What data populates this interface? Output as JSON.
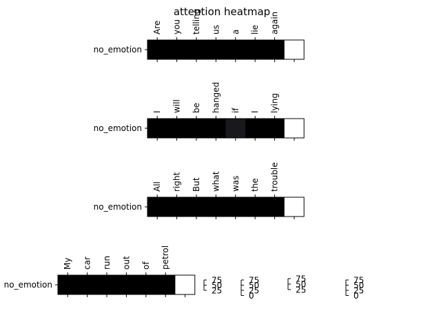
{
  "title": "attention heatmap",
  "colors": {
    "cell_high": "#000000",
    "cell_mid": "#18181c",
    "cell_empty": "#ffffff",
    "axis": "#000000"
  },
  "chart_data": [
    {
      "type": "heatmap",
      "ylabel": "no_emotion",
      "tokens": [
        "Are",
        "you",
        "telling",
        "us",
        "a",
        "lie",
        "again"
      ],
      "weights": [
        1.0,
        1.0,
        1.0,
        1.0,
        1.0,
        1.0,
        1.0,
        0.0
      ]
    },
    {
      "type": "heatmap",
      "ylabel": "no_emotion",
      "tokens": [
        "I",
        "will",
        "be",
        "hanged",
        "if",
        "I",
        "lying"
      ],
      "weights": [
        1.0,
        1.0,
        1.0,
        1.0,
        0.9,
        1.0,
        1.0,
        0.0
      ]
    },
    {
      "type": "heatmap",
      "ylabel": "no_emotion",
      "tokens": [
        "All",
        "right",
        "But",
        "what",
        "was",
        "the",
        "trouble"
      ],
      "weights": [
        1.0,
        1.0,
        1.0,
        1.0,
        1.0,
        1.0,
        1.0,
        0.0
      ]
    },
    {
      "type": "heatmap",
      "ylabel": "no_emotion",
      "tokens": [
        "My",
        "car",
        "run",
        "out",
        "of",
        "petrol"
      ],
      "weights": [
        1.0,
        1.0,
        1.0,
        1.0,
        1.0,
        1.0,
        0.0
      ]
    }
  ],
  "colorbars": [
    {
      "ticks": [
        "75",
        "50",
        "25"
      ]
    },
    {
      "ticks": [
        "75",
        "50",
        "25",
        "0"
      ]
    },
    {
      "ticks": [
        "75",
        "50",
        "25"
      ]
    },
    {
      "ticks": [
        "75",
        "50",
        "25",
        "0"
      ]
    }
  ]
}
